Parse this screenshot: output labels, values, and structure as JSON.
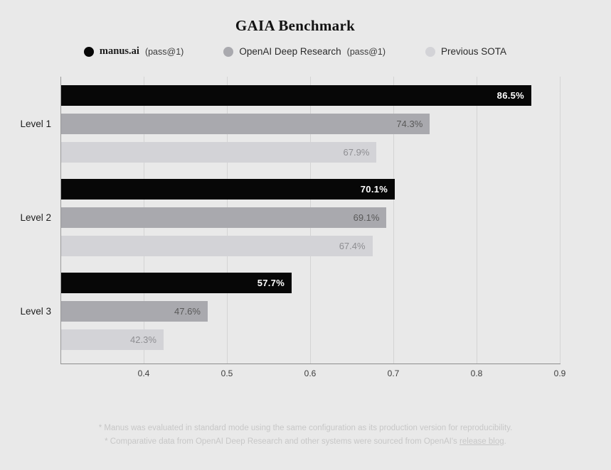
{
  "title": "GAIA Benchmark",
  "legend": [
    {
      "label": "manus.ai",
      "suffix": "(pass@1)",
      "color": "#070707"
    },
    {
      "label": "OpenAI Deep Research",
      "suffix": "(pass@1)",
      "color": "#a9a9ae"
    },
    {
      "label": "Previous SOTA",
      "suffix": "",
      "color": "#d3d3d7"
    }
  ],
  "chart_data": {
    "type": "bar",
    "orientation": "horizontal",
    "title": "GAIA Benchmark",
    "categories": [
      "Level 1",
      "Level 2",
      "Level 3"
    ],
    "series": [
      {
        "name": "manus.ai (pass@1)",
        "color": "#070707",
        "label_color": "#ffffff",
        "values": [
          86.5,
          70.1,
          57.7
        ]
      },
      {
        "name": "OpenAI Deep Research (pass@1)",
        "color": "#a9a9ae",
        "label_color": "#595959",
        "values": [
          74.3,
          69.1,
          47.6
        ]
      },
      {
        "name": "Previous SOTA",
        "color": "#d3d3d7",
        "label_color": "#8e8e92",
        "values": [
          67.9,
          67.4,
          42.3
        ]
      }
    ],
    "value_suffix": "%",
    "xlim": [
      0.3,
      0.9
    ],
    "xticks": [
      "0.4",
      "0.5",
      "0.6",
      "0.7",
      "0.8",
      "0.9"
    ],
    "grid": true,
    "legend_position": "top"
  },
  "footnotes": {
    "line1": "* Manus was evaluated in standard mode using the same configuration as its production version for reproducibility.",
    "line2_prefix": "* Comparative data from OpenAI Deep Research and other systems were sourced from OpenAI's ",
    "line2_link": "release blog",
    "line2_suffix": "."
  },
  "colors": {
    "background": "#e9e9e9",
    "gridline": "#d4d4d4",
    "axis": "#8f8f8f",
    "tick_text": "#3c3c3c",
    "category_text": "#1e1e1e",
    "footnote_text": "#c7c7c7"
  }
}
